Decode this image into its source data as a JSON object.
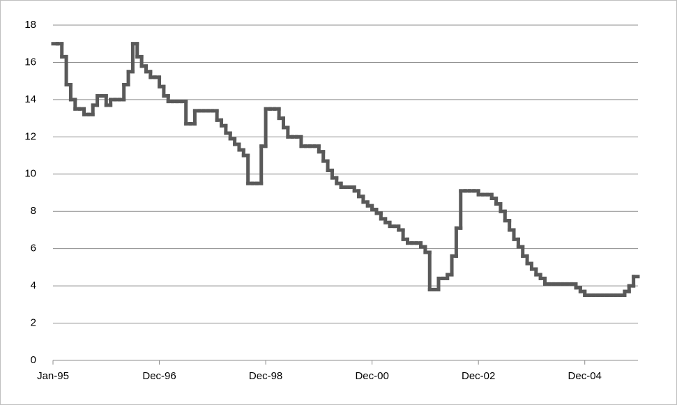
{
  "chart_data": {
    "type": "step-line",
    "categories": [
      "Jan-95",
      null,
      null,
      null,
      null,
      null,
      null,
      null,
      null,
      null,
      null,
      null,
      null,
      null,
      null,
      null,
      null,
      null,
      null,
      null,
      null,
      null,
      null,
      null,
      "Dec-96",
      null,
      null,
      null,
      null,
      null,
      null,
      null,
      null,
      null,
      null,
      null,
      null,
      null,
      null,
      null,
      null,
      null,
      null,
      null,
      null,
      null,
      null,
      null,
      "Dec-98",
      null,
      null,
      null,
      null,
      null,
      null,
      null,
      null,
      null,
      null,
      null,
      null,
      null,
      null,
      null,
      null,
      null,
      null,
      null,
      null,
      null,
      null,
      null,
      "Dec-00",
      null,
      null,
      null,
      null,
      null,
      null,
      null,
      null,
      null,
      null,
      null,
      null,
      null,
      null,
      null,
      null,
      null,
      null,
      null,
      null,
      null,
      null,
      null,
      "Dec-02",
      null,
      null,
      null,
      null,
      null,
      null,
      null,
      null,
      null,
      null,
      null,
      null,
      null,
      null,
      null,
      null,
      null,
      null,
      null,
      null,
      null,
      null,
      null,
      "Dec-04",
      null,
      null,
      null,
      null,
      null,
      null,
      null,
      null,
      null,
      null,
      null
    ],
    "values": [
      17,
      17,
      16.3,
      14.8,
      14.0,
      13.5,
      13.5,
      13.2,
      13.2,
      13.7,
      14.2,
      14.2,
      13.7,
      14.0,
      14.0,
      14.0,
      14.8,
      15.5,
      17.0,
      16.3,
      15.8,
      15.5,
      15.2,
      15.2,
      14.7,
      14.2,
      13.9,
      13.9,
      13.9,
      13.9,
      12.7,
      12.7,
      13.4,
      13.4,
      13.4,
      13.4,
      13.4,
      12.9,
      12.6,
      12.2,
      11.9,
      11.6,
      11.3,
      11.0,
      9.5,
      9.5,
      9.5,
      11.5,
      13.5,
      13.5,
      13.5,
      13.0,
      12.5,
      12.0,
      12.0,
      12.0,
      11.5,
      11.5,
      11.5,
      11.5,
      11.2,
      10.7,
      10.2,
      9.8,
      9.5,
      9.3,
      9.3,
      9.3,
      9.1,
      8.8,
      8.5,
      8.3,
      8.1,
      7.9,
      7.6,
      7.4,
      7.2,
      7.2,
      7.0,
      6.5,
      6.3,
      6.3,
      6.3,
      6.1,
      5.8,
      3.8,
      3.8,
      4.4,
      4.4,
      4.6,
      5.6,
      7.1,
      9.1,
      9.1,
      9.1,
      9.1,
      8.9,
      8.9,
      8.9,
      8.7,
      8.4,
      8.0,
      7.5,
      7.0,
      6.5,
      6.1,
      5.6,
      5.2,
      4.9,
      4.6,
      4.4,
      4.1,
      4.1,
      4.1,
      4.1,
      4.1,
      4.1,
      4.1,
      3.9,
      3.7,
      3.5,
      3.5,
      3.5,
      3.5,
      3.5,
      3.5,
      3.5,
      3.5,
      3.5,
      3.7,
      4.0,
      4.5
    ],
    "color": "#595959",
    "ylim": [
      0,
      18
    ],
    "yticks": [
      0,
      2,
      4,
      6,
      8,
      10,
      12,
      14,
      16,
      18
    ],
    "grid": true
  }
}
